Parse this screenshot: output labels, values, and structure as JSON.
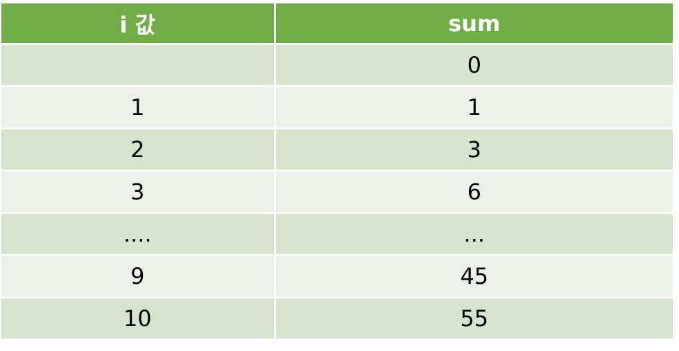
{
  "table": {
    "headers": [
      "i 값",
      "sum"
    ],
    "rows": [
      [
        "",
        "0"
      ],
      [
        "1",
        "1"
      ],
      [
        "2",
        "3"
      ],
      [
        "3",
        "6"
      ],
      [
        "....",
        "..."
      ],
      [
        "9",
        "45"
      ],
      [
        "10",
        "55"
      ]
    ]
  },
  "colors": {
    "header": "#70AD47",
    "row_dark": "#D7E3CE",
    "row_light": "#EBF0E9"
  }
}
